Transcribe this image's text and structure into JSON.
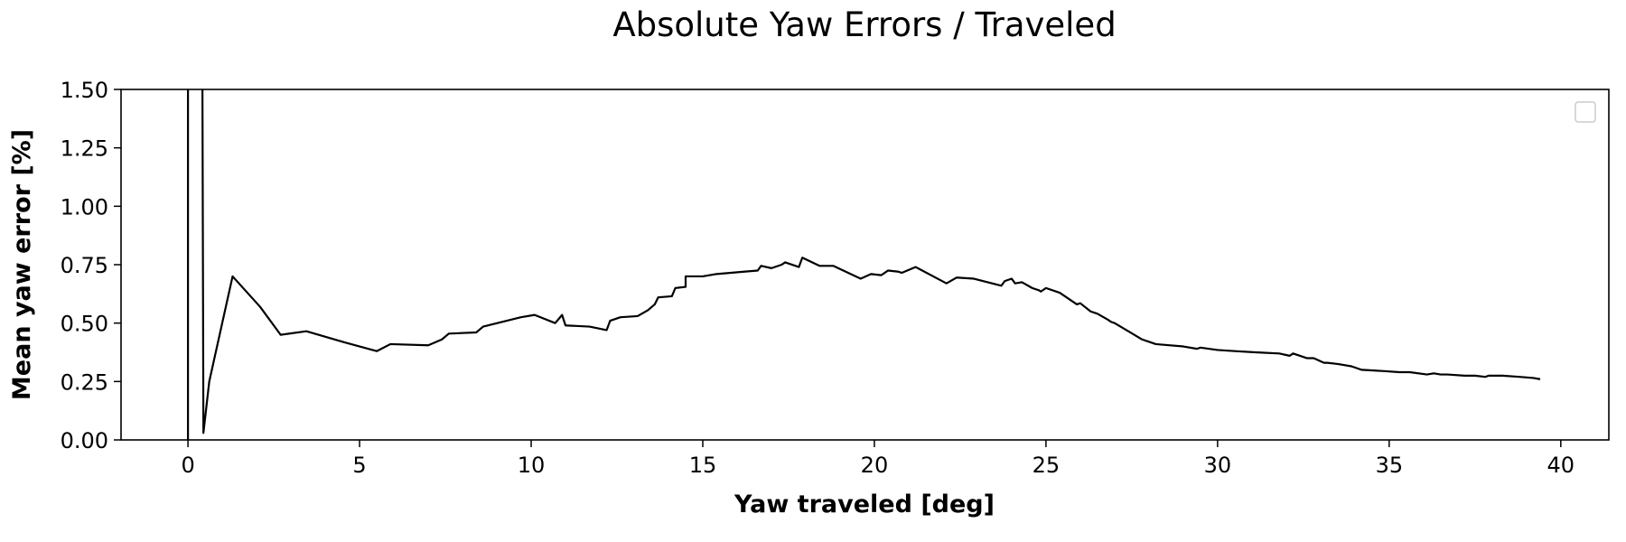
{
  "chart_data": {
    "type": "line",
    "title": "Absolute Yaw Errors / Traveled",
    "xlabel": "Yaw traveled [deg]",
    "ylabel": "Mean yaw error [%]",
    "xlim": [
      -1.95,
      41.4
    ],
    "ylim": [
      0,
      1.5
    ],
    "xticks": [
      0,
      5,
      10,
      15,
      20,
      25,
      30,
      35,
      40
    ],
    "yticks": [
      0.0,
      0.25,
      0.5,
      0.75,
      1.0,
      1.25,
      1.5
    ],
    "ytick_labels": [
      "0.00",
      "0.25",
      "0.50",
      "0.75",
      "1.00",
      "1.25",
      "1.50"
    ],
    "grid": false,
    "legend": "top-right (empty)",
    "series": [
      {
        "color": "#000000",
        "x": [
          0.0,
          0.0,
          0.42,
          0.45,
          0.62,
          1.3,
          2.1,
          2.7,
          3.45,
          4.5,
          5.5,
          5.9,
          7.0,
          7.4,
          7.6,
          8.4,
          8.6,
          9.7,
          10.1,
          10.7,
          10.9,
          11.0,
          11.7,
          12.2,
          12.3,
          12.6,
          13.1,
          13.4,
          13.6,
          13.7,
          14.1,
          14.2,
          14.5,
          14.5,
          15.0,
          15.4,
          16.2,
          16.6,
          16.7,
          17.0,
          17.3,
          17.4,
          17.8,
          17.9,
          18.4,
          18.8,
          19.6,
          19.9,
          20.2,
          20.4,
          20.7,
          20.8,
          21.2,
          22.1,
          22.4,
          22.9,
          23.3,
          23.7,
          23.8,
          24.0,
          24.1,
          24.3,
          24.6,
          24.8,
          24.85,
          25.0,
          25.4,
          25.9,
          26.0,
          26.3,
          26.5,
          26.8,
          26.9,
          27.0,
          27.4,
          27.8,
          28.2,
          29.0,
          29.4,
          29.5,
          30.0,
          30.5,
          31.1,
          31.8,
          32.1,
          32.2,
          32.6,
          32.8,
          33.1,
          33.2,
          33.5,
          33.9,
          34.1,
          34.2,
          34.8,
          35.3,
          35.6,
          36.1,
          36.3,
          36.5,
          36.7,
          37.2,
          37.5,
          37.8,
          37.9,
          38.3,
          38.8,
          39.2,
          39.4
        ],
        "y": [
          0.0,
          1.6,
          1.6,
          0.03,
          0.25,
          0.7,
          0.57,
          0.45,
          0.465,
          0.42,
          0.38,
          0.41,
          0.405,
          0.43,
          0.455,
          0.46,
          0.485,
          0.525,
          0.535,
          0.5,
          0.535,
          0.49,
          0.485,
          0.47,
          0.51,
          0.525,
          0.53,
          0.555,
          0.58,
          0.61,
          0.615,
          0.65,
          0.655,
          0.7,
          0.7,
          0.71,
          0.72,
          0.725,
          0.745,
          0.735,
          0.75,
          0.76,
          0.74,
          0.78,
          0.745,
          0.745,
          0.69,
          0.71,
          0.705,
          0.725,
          0.72,
          0.715,
          0.74,
          0.67,
          0.695,
          0.69,
          0.675,
          0.66,
          0.68,
          0.69,
          0.67,
          0.675,
          0.65,
          0.64,
          0.635,
          0.65,
          0.63,
          0.58,
          0.585,
          0.55,
          0.54,
          0.515,
          0.505,
          0.5,
          0.465,
          0.43,
          0.41,
          0.4,
          0.39,
          0.395,
          0.385,
          0.38,
          0.375,
          0.37,
          0.36,
          0.37,
          0.35,
          0.35,
          0.33,
          0.33,
          0.325,
          0.315,
          0.305,
          0.3,
          0.295,
          0.29,
          0.29,
          0.28,
          0.285,
          0.28,
          0.28,
          0.275,
          0.275,
          0.27,
          0.275,
          0.275,
          0.27,
          0.265,
          0.26
        ]
      }
    ]
  }
}
